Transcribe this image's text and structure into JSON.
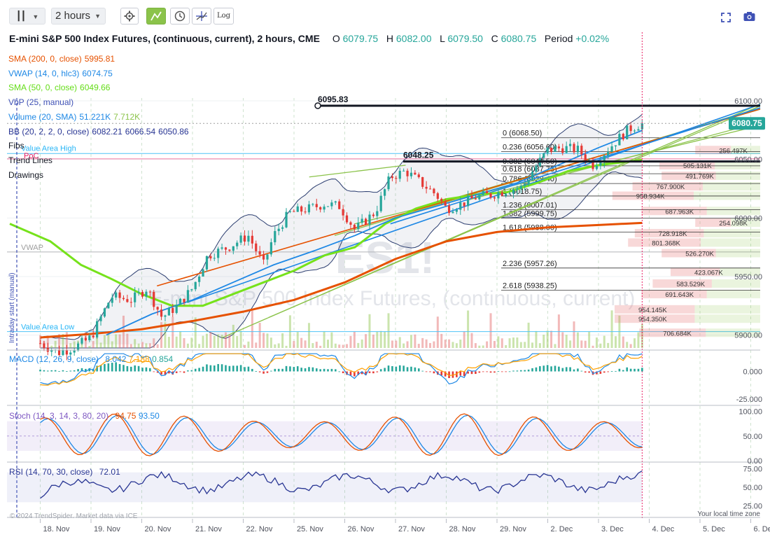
{
  "toolbar": {
    "interval": "2 hours",
    "log_label": "Log"
  },
  "header": {
    "title": "E-mini S&P 500 Index Futures, (continuous, current), 2 hours, CME",
    "o_label": "O",
    "o": "6079.75",
    "h_label": "H",
    "h": "6082.00",
    "l_label": "L",
    "l": "6079.50",
    "c_label": "C",
    "c": "6080.75",
    "period_label": "Period",
    "period": "+0.02%"
  },
  "legend": [
    {
      "label": "SMA (200, 0, close)",
      "values": [
        "5995.81"
      ],
      "color": "#e65100"
    },
    {
      "label": "VWAP (14, 0, hlc3)",
      "values": [
        "6074.75"
      ],
      "color": "#1e88e5"
    },
    {
      "label": "SMA (50, 0, close)",
      "values": [
        "6049.66"
      ],
      "color": "#64dd17"
    },
    {
      "label": "VbP (25, manual)",
      "values": [],
      "color": "#3f51b5"
    },
    {
      "label": "Volume (20, SMA)",
      "values": [
        "51.221K",
        "7.712K"
      ],
      "color": "#1e88e5"
    },
    {
      "label": "BB (20, 2, 2, 0, close)",
      "values": [
        "6082.21",
        "6066.54",
        "6050.86"
      ],
      "color": "#283593"
    },
    {
      "label": "Fibs",
      "values": [],
      "color": "#131722"
    },
    {
      "label": "Trend Lines",
      "values": [],
      "color": "#131722"
    },
    {
      "label": "Drawings",
      "values": [],
      "color": "#131722"
    }
  ],
  "overlay_labels": {
    "value_area_high": "Value Area High",
    "poc": "PoC",
    "value_area_low": "Value Area Low",
    "vwap": "VWAP",
    "anchor": "Intraday start (manual)",
    "watermark_symbol": "ES1!",
    "watermark_name": "E-mini S&P 500 Index Futures, (continuous, current)"
  },
  "price_badge": "6080.75",
  "chart_data": [
    {
      "type": "candlestick",
      "panel": "price",
      "x_labels": [
        "18. Nov",
        "19. Nov",
        "20. Nov",
        "21. Nov",
        "22. Nov",
        "25. Nov",
        "26. Nov",
        "27. Nov",
        "28. Nov",
        "29. Nov",
        "2. Dec",
        "3. Dec",
        "4. Dec",
        "5. Dec",
        "6. Dec"
      ],
      "y_ticks": [
        "6100.00",
        "6050.00",
        "6000.00",
        "5950.00",
        "5900.00"
      ],
      "ylim": [
        5892,
        6103
      ],
      "price_path": [
        [
          0,
          5893
        ],
        [
          0.35,
          5885
        ],
        [
          0.7,
          5890
        ],
        [
          1.0,
          5898
        ],
        [
          1.4,
          5933
        ],
        [
          1.8,
          5930
        ],
        [
          2.1,
          5940
        ],
        [
          2.4,
          5915
        ],
        [
          2.7,
          5925
        ],
        [
          3.0,
          5940
        ],
        [
          3.3,
          5968
        ],
        [
          3.7,
          5975
        ],
        [
          4.1,
          5985
        ],
        [
          4.4,
          5960
        ],
        [
          4.6,
          5985
        ],
        [
          4.9,
          6004
        ],
        [
          5.3,
          6008
        ],
        [
          5.6,
          6012
        ],
        [
          5.9,
          6010
        ],
        [
          6.2,
          5990
        ],
        [
          6.6,
          6005
        ],
        [
          6.9,
          6035
        ],
        [
          7.2,
          6040
        ],
        [
          7.5,
          6030
        ],
        [
          7.8,
          6020
        ],
        [
          8.0,
          6008
        ],
        [
          8.3,
          6012
        ],
        [
          8.6,
          6018
        ],
        [
          8.9,
          6020
        ],
        [
          9.2,
          6024
        ],
        [
          9.5,
          6026
        ],
        [
          9.7,
          6040
        ],
        [
          10.0,
          6058
        ],
        [
          10.3,
          6060
        ],
        [
          10.6,
          6058
        ],
        [
          10.9,
          6045
        ],
        [
          11.1,
          6055
        ],
        [
          11.4,
          6068
        ],
        [
          11.6,
          6076
        ],
        [
          11.86,
          6080.75
        ]
      ],
      "last_price": 6080.75,
      "horizontal_levels": [
        {
          "label": "6095.83",
          "price": 6095.83
        },
        {
          "label": "6048.25",
          "price": 6048.25
        }
      ],
      "fib_levels": [
        {
          "ratio": "0",
          "price": "6068.50"
        },
        {
          "ratio": "0.236",
          "price": "6056.60"
        },
        {
          "ratio": "0.382",
          "price": "6044.50"
        },
        {
          "ratio": "0.618",
          "price": "6037.75"
        },
        {
          "ratio": "0.786",
          "price": "6029.40"
        },
        {
          "ratio": "1",
          "price": "6018.75"
        },
        {
          "ratio": "1.236",
          "price": "6007.01"
        },
        {
          "ratio": "1.382",
          "price": "5999.75"
        },
        {
          "ratio": "1.618",
          "price": "5988.00"
        },
        {
          "ratio": "2.236",
          "price": "5957.26"
        },
        {
          "ratio": "2.618",
          "price": "5938.25"
        }
      ],
      "volume_profile": [
        {
          "price": 6058,
          "value": "256.497K",
          "w": 0.29
        },
        {
          "price": 6045,
          "value": "505.131K",
          "w": 0.45
        },
        {
          "price": 6036,
          "value": "491.769K",
          "w": 0.44
        },
        {
          "price": 6027,
          "value": "767.900K",
          "w": 0.57
        },
        {
          "price": 6019,
          "value": "958.934K",
          "w": 0.66
        },
        {
          "price": 6006,
          "value": "687.963K",
          "w": 0.53
        },
        {
          "price": 5996,
          "value": "254.098K",
          "w": 0.29
        },
        {
          "price": 5987,
          "value": "728.918K",
          "w": 0.56
        },
        {
          "price": 5979,
          "value": "801.368K",
          "w": 0.59
        },
        {
          "price": 5970,
          "value": "526.270K",
          "w": 0.44
        },
        {
          "price": 5954,
          "value": "423.067K",
          "w": 0.4
        },
        {
          "price": 5944,
          "value": "583.529K",
          "w": 0.48
        },
        {
          "price": 5935,
          "value": "691.643K",
          "w": 0.53
        },
        {
          "price": 5922,
          "value": "954.145K",
          "w": 0.65
        },
        {
          "price": 5914,
          "value": "954.350K",
          "w": 0.65
        },
        {
          "price": 5902,
          "value": "706.684K",
          "w": 0.54
        }
      ]
    },
    {
      "type": "line",
      "panel": "macd",
      "title": "MACD (12, 26, 9, close)",
      "values": [
        "8.042",
        "7.188",
        "0.854"
      ],
      "y_ticks": [
        "0.000",
        "-25.000"
      ],
      "ylim": [
        -30,
        18
      ]
    },
    {
      "type": "line",
      "panel": "stoch",
      "title": "Stoch (14, 3, 14, 3, 80, 20)",
      "values": [
        "94.75",
        "93.50"
      ],
      "y_ticks": [
        "100.00",
        "50.00",
        "0.00"
      ],
      "ylim": [
        0,
        105
      ]
    },
    {
      "type": "line",
      "panel": "rsi",
      "title": "RSI (14, 70, 30, close)",
      "values": [
        "72.01"
      ],
      "y_ticks": [
        "75.00",
        "50.00",
        "25.00"
      ],
      "ylim": [
        20,
        80
      ]
    }
  ],
  "footer": {
    "attribution": "© 2024 TrendSpider. Market data via ICE",
    "timezone": "Your local time zone"
  }
}
